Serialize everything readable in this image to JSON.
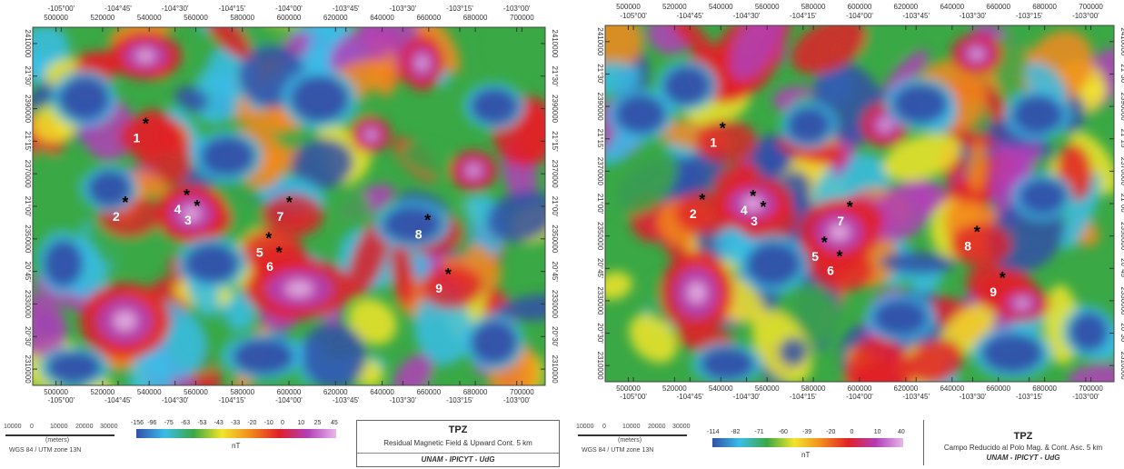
{
  "left_map": {
    "top_lon_labels": [
      "-105°00'",
      "-104°45'",
      "-104°30'",
      "-104°15'",
      "-104°00'",
      "-103°45'",
      "-103°30'",
      "-103°15'",
      "-103°00'"
    ],
    "top_utm_labels": [
      "500000",
      "520000",
      "540000",
      "560000",
      "580000",
      "600000",
      "620000",
      "640000",
      "660000",
      "680000",
      "700000"
    ],
    "bottom_utm_labels": [
      "500000",
      "520000",
      "540000",
      "560000",
      "580000",
      "600000",
      "620000",
      "640000",
      "660000",
      "680000",
      "700000"
    ],
    "bottom_lon_labels": [
      "-105°00'",
      "-104°45'",
      "-104°30'",
      "-104°15'",
      "-104°00'",
      "-103°45'",
      "-103°30'",
      "-103°15'",
      "-103°00'"
    ],
    "left_lat_labels": [
      "2410000",
      "21°30'",
      "2390000",
      "21°15'",
      "2370000",
      "21°00'",
      "2350000",
      "20°45'",
      "2330000",
      "20°30'",
      "2310000"
    ],
    "right_lat_labels": [
      "2410000",
      "21°30'",
      "2390000",
      "21°15'",
      "2370000",
      "21°00'",
      "2350000",
      "20°45'",
      "2330000",
      "20°30'",
      "2310000"
    ],
    "points": [
      {
        "label": "1",
        "x": 0.21,
        "y": 0.28
      },
      {
        "label": "2",
        "x": 0.17,
        "y": 0.5
      },
      {
        "label": "3",
        "x": 0.31,
        "y": 0.51
      },
      {
        "label": "4",
        "x": 0.29,
        "y": 0.48
      },
      {
        "label": "5",
        "x": 0.45,
        "y": 0.6
      },
      {
        "label": "6",
        "x": 0.47,
        "y": 0.64
      },
      {
        "label": "7",
        "x": 0.49,
        "y": 0.5
      },
      {
        "label": "8",
        "x": 0.76,
        "y": 0.55
      },
      {
        "label": "9",
        "x": 0.8,
        "y": 0.7
      }
    ]
  },
  "right_map": {
    "top_utm_labels": [
      "500000",
      "520000",
      "540000",
      "560000",
      "580000",
      "600000",
      "620000",
      "640000",
      "660000",
      "680000",
      "700000"
    ],
    "top_lon_labels": [
      "-105°00'",
      "-104°45'",
      "-104°30'",
      "-104°15'",
      "-104°00'",
      "-103°45'",
      "-103°30'",
      "-103°15'",
      "-103°00'"
    ],
    "bottom_utm_labels": [
      "500000",
      "520000",
      "540000",
      "560000",
      "580000",
      "600000",
      "620000",
      "640000",
      "660000",
      "680000",
      "700000"
    ],
    "bottom_lon_labels": [
      "-105°00'",
      "-104°45'",
      "-104°30'",
      "-104°15'",
      "-104°00'",
      "-103°45'",
      "-103°30'",
      "-103°15'",
      "-103°00'"
    ],
    "left_lat_labels": [
      "2410000",
      "21°30'",
      "2390000",
      "21°15'",
      "2370000",
      "21°00'",
      "2350000",
      "20°45'",
      "2330000",
      "20°30'",
      "2310000"
    ],
    "right_lat_labels": [
      "2410000",
      "21°30'",
      "2390000",
      "21°15'",
      "2370000",
      "21°00'",
      "2350000",
      "20°45'",
      "2330000",
      "20°30'",
      "2310000"
    ],
    "points": [
      {
        "label": "1",
        "x": 0.22,
        "y": 0.3
      },
      {
        "label": "2",
        "x": 0.18,
        "y": 0.5
      },
      {
        "label": "3",
        "x": 0.3,
        "y": 0.52
      },
      {
        "label": "4",
        "x": 0.28,
        "y": 0.49
      },
      {
        "label": "5",
        "x": 0.42,
        "y": 0.62
      },
      {
        "label": "6",
        "x": 0.45,
        "y": 0.66
      },
      {
        "label": "7",
        "x": 0.47,
        "y": 0.52
      },
      {
        "label": "8",
        "x": 0.72,
        "y": 0.59
      },
      {
        "label": "9",
        "x": 0.77,
        "y": 0.72
      }
    ]
  },
  "left_footer": {
    "scale_labels": [
      "10000",
      "0",
      "10000",
      "20000",
      "30000"
    ],
    "scale_unit": "(meters)",
    "projection": "WGS 84 / UTM zone 13N",
    "legend_ticks": [
      "-156",
      "-96",
      "-75",
      "-63",
      "-53",
      "-43",
      "-33",
      "-20",
      "-10",
      "0",
      "10",
      "25",
      "45"
    ],
    "legend_unit": "nT",
    "title": "TPZ",
    "subtitle": "Residual Magnetic Field & Upward Cont. 5 km",
    "institution": "UNAM - IPICYT - UdG"
  },
  "right_footer": {
    "scale_labels": [
      "10000",
      "0",
      "10000",
      "20000",
      "30000"
    ],
    "scale_unit": "(meters)",
    "projection": "WGS 84 / UTM zone 13N",
    "legend_ticks": [
      "-114",
      "-82",
      "-71",
      "-60",
      "-39",
      "-20",
      "0",
      "10",
      "40"
    ],
    "legend_unit": "nT",
    "title": "TPZ",
    "subtitle": "Campo Reducido al Polo Mag. & Cont. Asc. 5 km",
    "institution": "UNAM - IPICYT - UdG"
  },
  "colors": {
    "magenta": "#b13fb8",
    "red": "#e02028",
    "orange": "#f28a1c",
    "yellow": "#f1e52b",
    "green": "#3aa845",
    "cyan": "#39bde8",
    "blue": "#3350a8"
  }
}
